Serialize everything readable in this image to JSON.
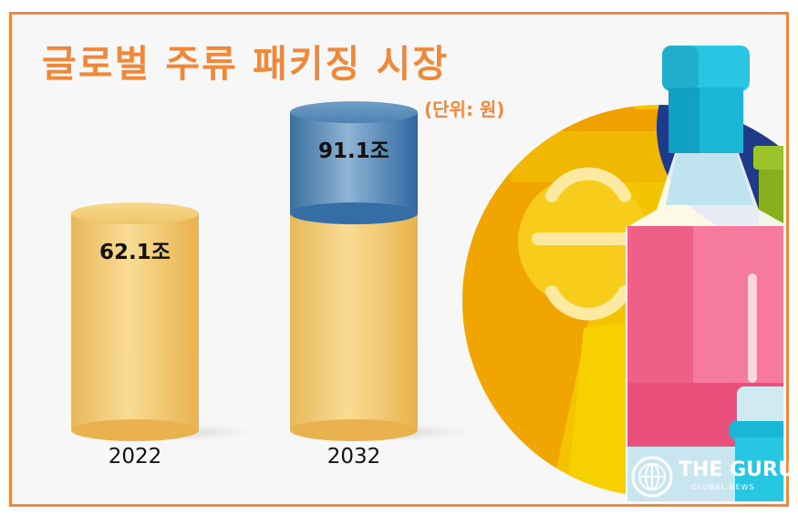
{
  "title": "글로벌 주류 패키징 시장",
  "unit": "(단위: 원)",
  "chart_data": {
    "type": "bar",
    "categories": [
      "2022",
      "2032"
    ],
    "values": [
      62.1,
      91.1
    ],
    "value_labels": [
      "62.1조",
      "91.1조"
    ],
    "ylim": [
      0,
      100
    ],
    "grid": false,
    "legend": "none"
  },
  "colors": {
    "title": "#f0883a",
    "frame": "#f0883a",
    "bar_gold": "#f2c66a",
    "bar_blue": "#3f78ad"
  },
  "logo": {
    "name": "THE GURU",
    "sub": "GLOBAL NEWS",
    "icon": "globe-icon"
  }
}
